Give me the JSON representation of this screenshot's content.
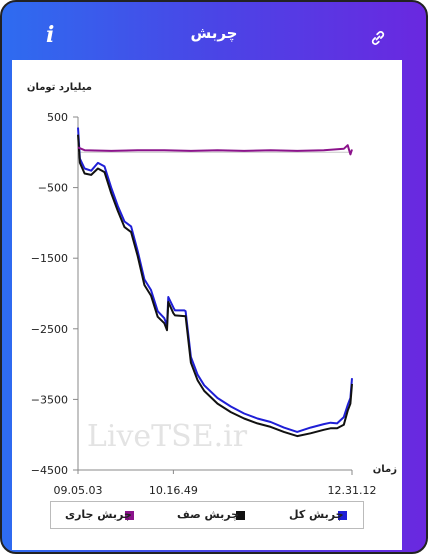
{
  "header": {
    "title": "چربش",
    "info_icon": "info-icon",
    "link_icon": "link-icon"
  },
  "colors": {
    "series_total": "#1f1fd6",
    "series_queue": "#111111",
    "series_current": "#8b138b"
  },
  "watermark": "LiveTSE.ir",
  "chart_data": {
    "type": "line",
    "ylabel": "میلیارد تومان",
    "xlabel": "زمان",
    "ylim": [
      -4500,
      500
    ],
    "yticks": [
      500,
      -500,
      -1500,
      -2500,
      -3500,
      -4500
    ],
    "xtick_labels": [
      "09.05.03",
      "10.16.49",
      "12.31.12"
    ],
    "xlim": [
      "09.05.03",
      "12.31.12"
    ],
    "grid": false,
    "legend_position": "bottom",
    "series": [
      {
        "name": "چربش کل",
        "color": "#1f1fd6",
        "x": [
          "09.05.03",
          "09.06.30",
          "09.10.00",
          "09.15.00",
          "09.20.00",
          "09.25.00",
          "09.30.00",
          "09.35.00",
          "09.40.00",
          "09.45.00",
          "09.50.00",
          "09.55.00",
          "10.00.00",
          "10.05.00",
          "10.10.00",
          "10.12.00",
          "10.13.00",
          "10.16.49",
          "10.18.00",
          "10.25.00",
          "10.26.00",
          "10.30.00",
          "10.35.00",
          "10.40.00",
          "10.50.00",
          "11.00.00",
          "11.10.00",
          "11.20.00",
          "11.30.00",
          "11.40.00",
          "11.50.00",
          "12.00.00",
          "12.10.00",
          "12.15.00",
          "12.20.00",
          "12.25.00",
          "12.28.00",
          "12.30.00",
          "12.31.12"
        ],
        "values": [
          350,
          -90,
          -230,
          -260,
          -150,
          -200,
          -500,
          -760,
          -980,
          -1050,
          -1400,
          -1800,
          -1950,
          -2250,
          -2350,
          -2450,
          -2050,
          -2200,
          -2240,
          -2240,
          -2250,
          -2900,
          -3150,
          -3300,
          -3480,
          -3600,
          -3700,
          -3770,
          -3820,
          -3900,
          -3960,
          -3900,
          -3850,
          -3830,
          -3840,
          -3750,
          -3580,
          -3480,
          -3200
        ]
      },
      {
        "name": "چربش صف",
        "color": "#111111",
        "x": [
          "09.05.03",
          "09.06.30",
          "09.10.00",
          "09.15.00",
          "09.20.00",
          "09.25.00",
          "09.30.00",
          "09.35.00",
          "09.40.00",
          "09.45.00",
          "09.50.00",
          "09.55.00",
          "10.00.00",
          "10.05.00",
          "10.10.00",
          "10.12.00",
          "10.13.00",
          "10.16.49",
          "10.18.00",
          "10.25.00",
          "10.26.00",
          "10.30.00",
          "10.35.00",
          "10.40.00",
          "10.50.00",
          "11.00.00",
          "11.10.00",
          "11.20.00",
          "11.30.00",
          "11.40.00",
          "11.50.00",
          "12.00.00",
          "12.10.00",
          "12.15.00",
          "12.20.00",
          "12.25.00",
          "12.28.00",
          "12.30.00",
          "12.31.12"
        ],
        "values": [
          250,
          -150,
          -300,
          -320,
          -230,
          -280,
          -580,
          -830,
          -1060,
          -1130,
          -1470,
          -1880,
          -2030,
          -2330,
          -2420,
          -2520,
          -2120,
          -2280,
          -2310,
          -2320,
          -2320,
          -2980,
          -3230,
          -3380,
          -3560,
          -3680,
          -3770,
          -3840,
          -3890,
          -3960,
          -4020,
          -3980,
          -3930,
          -3910,
          -3910,
          -3860,
          -3660,
          -3560,
          -3280
        ]
      },
      {
        "name": "چربش جاری",
        "color": "#8b138b",
        "x": [
          "09.05.03",
          "09.10.00",
          "09.30.00",
          "09.50.00",
          "10.10.00",
          "10.30.00",
          "10.50.00",
          "11.10.00",
          "11.30.00",
          "11.50.00",
          "12.10.00",
          "12.25.00",
          "12.28.00",
          "12.30.00",
          "12.31.12"
        ],
        "values": [
          70,
          30,
          20,
          30,
          30,
          20,
          30,
          20,
          30,
          20,
          30,
          50,
          100,
          -30,
          40
        ]
      }
    ]
  }
}
